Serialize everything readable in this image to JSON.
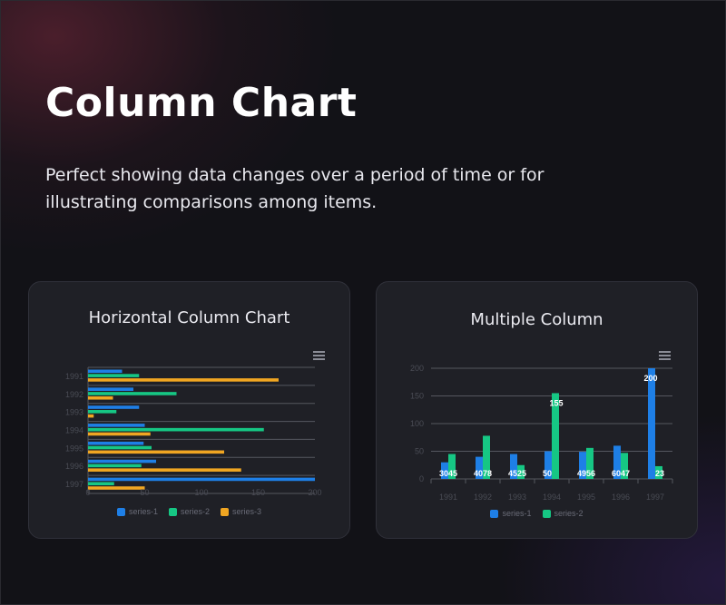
{
  "header": {
    "title": "Column Chart",
    "subtitle": "Perfect showing data changes over a period of time or for illustrating comparisons among items."
  },
  "colors": {
    "series1": "#1e7fe6",
    "series2": "#16c784",
    "series3": "#f0a622",
    "grid": "#55575f",
    "axis_text": "#4a4c55"
  },
  "chart_data": [
    {
      "type": "bar",
      "orientation": "horizontal",
      "title": "Horizontal Column Chart",
      "categories": [
        "1991",
        "1992",
        "1993",
        "1994",
        "1995",
        "1996",
        "1997"
      ],
      "series": [
        {
          "name": "series-1",
          "values": [
            30,
            40,
            45,
            50,
            49,
            60,
            200
          ]
        },
        {
          "name": "series-2",
          "values": [
            45,
            78,
            25,
            155,
            56,
            47,
            23
          ]
        },
        {
          "name": "series-3",
          "values": [
            168,
            22,
            5,
            55,
            120,
            135,
            50
          ]
        }
      ],
      "xlim": [
        0,
        200
      ],
      "xticks": [
        "0",
        "50",
        "100",
        "150",
        "200"
      ],
      "grid": true,
      "legend": "bottom",
      "menu_icon": "hamburger-icon"
    },
    {
      "type": "bar",
      "orientation": "vertical",
      "title": "Multiple Column",
      "categories": [
        "1991",
        "1992",
        "1993",
        "1994",
        "1995",
        "1996",
        "1997"
      ],
      "series": [
        {
          "name": "series-1",
          "values": [
            30,
            40,
            45,
            50,
            49,
            60,
            200
          ]
        },
        {
          "name": "series-2",
          "values": [
            45,
            78,
            25,
            155,
            56,
            47,
            23
          ]
        }
      ],
      "ylim": [
        0,
        200
      ],
      "yticks": [
        "0",
        "50",
        "100",
        "150",
        "200"
      ],
      "data_labels": [
        "30",
        "45",
        "40",
        "78",
        "45",
        "25",
        "50",
        "155",
        "49",
        "56",
        "60",
        "47",
        "200",
        "23"
      ],
      "grid": true,
      "legend": "bottom",
      "menu_icon": "hamburger-icon"
    }
  ]
}
